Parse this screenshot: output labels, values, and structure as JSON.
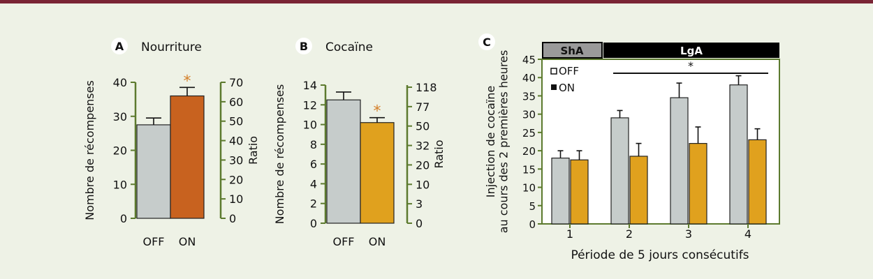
{
  "colors": {
    "page_background": "#eef2e6",
    "top_rule": "#7a2535",
    "axis": "#5c7a2e",
    "bar_off": "#c6cccb",
    "bar_on_food": "#c8621f",
    "bar_on_cocaine": "#e0a11e",
    "asterisk": "#d4802a",
    "header_dark": "#000000",
    "header_grey": "#9a9a9a"
  },
  "chart_data": [
    {
      "panel": "A",
      "title": "Nourriture",
      "type": "bar",
      "categories": [
        "OFF",
        "ON"
      ],
      "values": [
        27.5,
        36
      ],
      "errors": [
        2,
        2.5
      ],
      "ylabel": "Nombre de récompenses",
      "y2label": "Ratio",
      "ylim": [
        0,
        40
      ],
      "yticks": [
        "0",
        "10",
        "20",
        "30",
        "40"
      ],
      "y2ticks": [
        "0",
        "10",
        "20",
        "30",
        "40",
        "50",
        "60",
        "70"
      ],
      "significance": "*"
    },
    {
      "panel": "B",
      "title": "Cocaïne",
      "type": "bar",
      "categories": [
        "OFF",
        "ON"
      ],
      "values": [
        12.5,
        10.2
      ],
      "errors": [
        0.8,
        0.5
      ],
      "ylabel": "Nombre de récompenses",
      "y2label": "Ratio",
      "ylim": [
        0,
        14
      ],
      "yticks": [
        "0",
        "2",
        "4",
        "6",
        "8",
        "10",
        "12",
        "14"
      ],
      "y2ticks": [
        "0",
        "3",
        "10",
        "20",
        "32",
        "50",
        "77",
        "118"
      ],
      "significance": "*"
    },
    {
      "panel": "C",
      "type": "bar",
      "categories": [
        "1",
        "2",
        "3",
        "4"
      ],
      "series": [
        {
          "name": "OFF",
          "values": [
            18,
            29,
            34.5,
            38
          ],
          "errors": [
            2,
            2,
            4,
            2.5
          ]
        },
        {
          "name": "ON",
          "values": [
            17.5,
            18.5,
            22,
            23
          ],
          "errors": [
            2.5,
            3.5,
            4.5,
            3
          ]
        }
      ],
      "xlabel": "Période de 5 jours consécutifs",
      "ylabel": "Injection de cocaïne\nau cours des 2 premières heures",
      "ylim": [
        0,
        45
      ],
      "yticks": [
        "0",
        "5",
        "10",
        "15",
        "20",
        "25",
        "30",
        "35",
        "40",
        "45"
      ],
      "headers": [
        {
          "label": "ShA",
          "style": "grey"
        },
        {
          "label": "LgA",
          "style": "dark"
        }
      ],
      "significance": "*",
      "legend_position": "top-left"
    }
  ]
}
